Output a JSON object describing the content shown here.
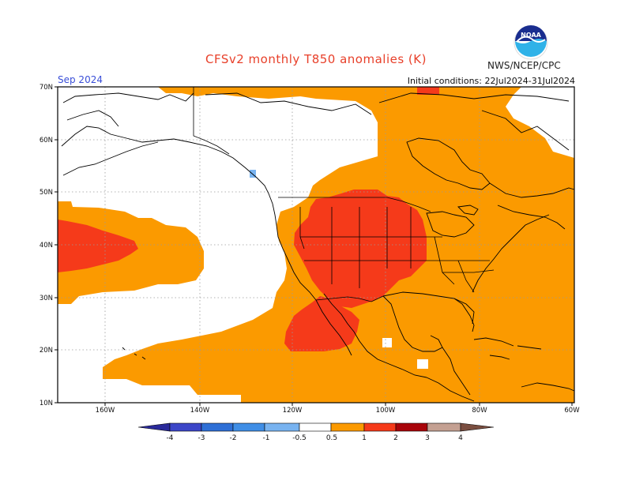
{
  "header": {
    "title": "CFSv2 monthly T850 anomalies (K)",
    "month": "Sep 2024",
    "agency": "NWS/NCEP/CPC",
    "initial_conditions": "Initial conditions: 22Jul2024-31Jul2024",
    "logo_text": "NOAA"
  },
  "axes": {
    "lat_labels": [
      "70N",
      "60N",
      "50N",
      "40N",
      "30N",
      "20N",
      "10N"
    ],
    "lon_labels": [
      "160W",
      "140W",
      "120W",
      "100W",
      "80W",
      "60W"
    ]
  },
  "legend": {
    "labels": [
      "-4",
      "-3",
      "-2",
      "-1",
      "-0.5",
      "0.5",
      "1",
      "2",
      "3",
      "4"
    ],
    "colors": [
      "#2a2a9a",
      "#3c46c8",
      "#2e6fd6",
      "#3f8ee6",
      "#78b3f0",
      "#ffffff",
      "#fb9a00",
      "#f53a1a",
      "#a8040a",
      "#c4a092",
      "#7a4e40"
    ]
  },
  "colors": {
    "anom_05_1": "#fb9a00",
    "anom_1_2": "#f53a1a",
    "anom_2_3": "#a8040a",
    "anom_neg": "#78b3f0",
    "land_outline": "#000000",
    "grid": "#9a9a9a",
    "title": "#e8402a",
    "month": "#3a4fd8"
  }
}
